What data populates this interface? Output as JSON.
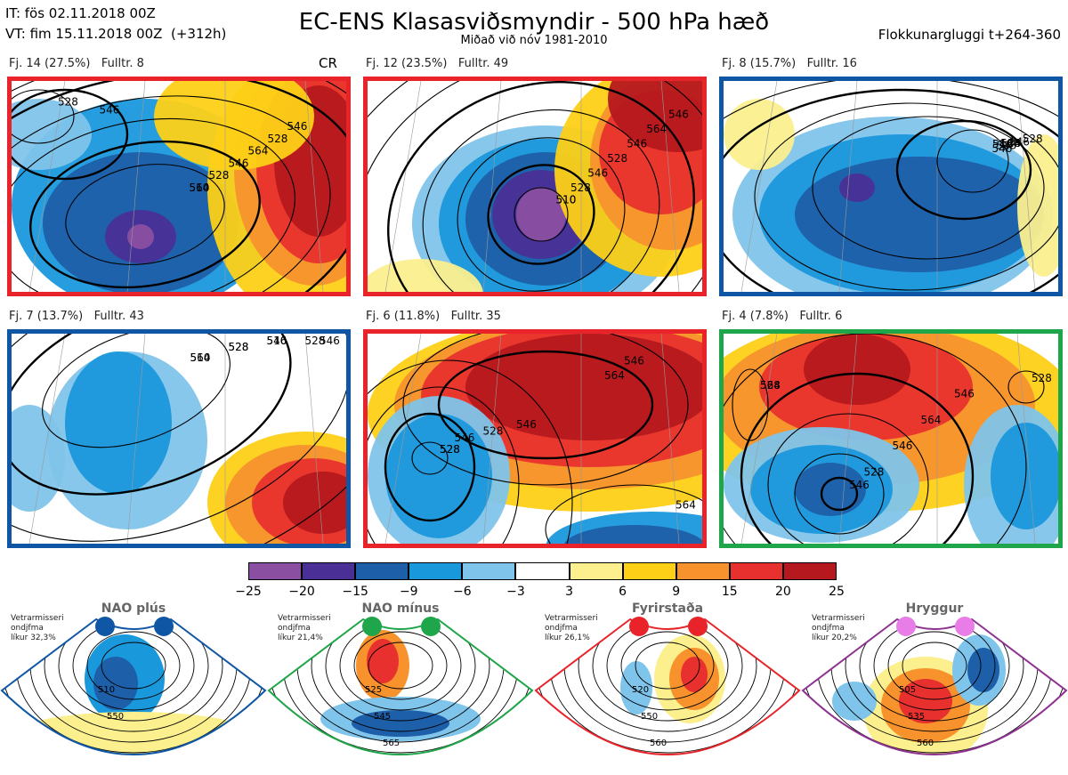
{
  "header": {
    "it_line": "IT: fös 02.11.2018 00Z",
    "vt_line": "VT: fim 15.11.2018 00Z  (+312h)",
    "title": "EC-ENS Klasasviðsmyndir - 500 hPa hæð",
    "subtitle": "Miðað við nóv 1981-2010",
    "window": "Flokkunargluggi t+264-360"
  },
  "panels": [
    {
      "label": "Fj. 14 (27.5%)   Fulltr. 8",
      "tag": "CR",
      "border": "#e8242a",
      "contours": [
        "510",
        "528",
        "546",
        "564",
        "528",
        "546",
        "528",
        "546",
        "564"
      ]
    },
    {
      "label": "Fj. 12 (23.5%)   Fulltr. 49",
      "tag": "",
      "border": "#e8242a",
      "contours": [
        "510",
        "528",
        "546",
        "528",
        "546",
        "564",
        "546",
        "510"
      ]
    },
    {
      "label": "Fj. 8 (15.7%)   Fulltr. 16",
      "tag": "",
      "border": "#0f57a4",
      "contours": [
        "510",
        "528",
        "546",
        "528",
        "546",
        "528",
        "546",
        "564"
      ]
    },
    {
      "label": "Fj. 7 (13.7%)   Fulltr. 43",
      "tag": "",
      "border": "#0f57a4",
      "contours": [
        "510",
        "528",
        "546",
        "528",
        "546",
        "564",
        "528",
        "510"
      ]
    },
    {
      "label": "Fj. 6 (11.8%)   Fulltr. 35",
      "tag": "",
      "border": "#e8242a",
      "contours": [
        "528",
        "546",
        "528",
        "546",
        "564",
        "546",
        "564",
        "528"
      ]
    },
    {
      "label": "Fj. 4 (7.8%)   Fulltr. 6",
      "tag": "",
      "border": "#1fa54a",
      "contours": [
        "528",
        "546",
        "528",
        "546",
        "564",
        "528",
        "546",
        "564"
      ]
    }
  ],
  "colorbar": {
    "labels": [
      "−25",
      "−20",
      "−15",
      "−9",
      "−6",
      "−3",
      "3",
      "6",
      "9",
      "15",
      "20",
      "25"
    ],
    "colors": [
      "#8b4fa1",
      "#4a3096",
      "#1d5fa8",
      "#1a98dc",
      "#7fc4ea",
      "#ffffff",
      "#fbef8e",
      "#fdd017",
      "#f7922d",
      "#e8312e",
      "#b5181e"
    ]
  },
  "climatology": [
    {
      "title": "NAO plús",
      "stat": "Vetrarmisseri\nondjfma\nlíkur 32,3%",
      "color": "#0f57a4",
      "dot": "#0f57a4",
      "contours": [
        "510",
        "550"
      ]
    },
    {
      "title": "NAO mínus",
      "stat": "Vetrarmisseri\nondjfma\nlíkur 21,4%",
      "color": "#1fa54a",
      "dot": "#1fa54a",
      "contours": [
        "525",
        "545",
        "565"
      ]
    },
    {
      "title": "Fyrirstaða",
      "stat": "Vetrarmisseri\nondjfma\nlíkur 26,1%",
      "color": "#e8242a",
      "dot": "#e8242a",
      "contours": [
        "520",
        "550",
        "560"
      ]
    },
    {
      "title": "Hryggur",
      "stat": "Vetrarmisseri\nondjfma\nlíkur 20,2%",
      "color": "#8e3291",
      "dot": "#e97de8",
      "contours": [
        "505",
        "535",
        "560"
      ]
    }
  ],
  "colors": {
    "red": "#e8242a",
    "blue": "#0f57a4",
    "green": "#1fa54a",
    "purple": "#8e3291"
  }
}
